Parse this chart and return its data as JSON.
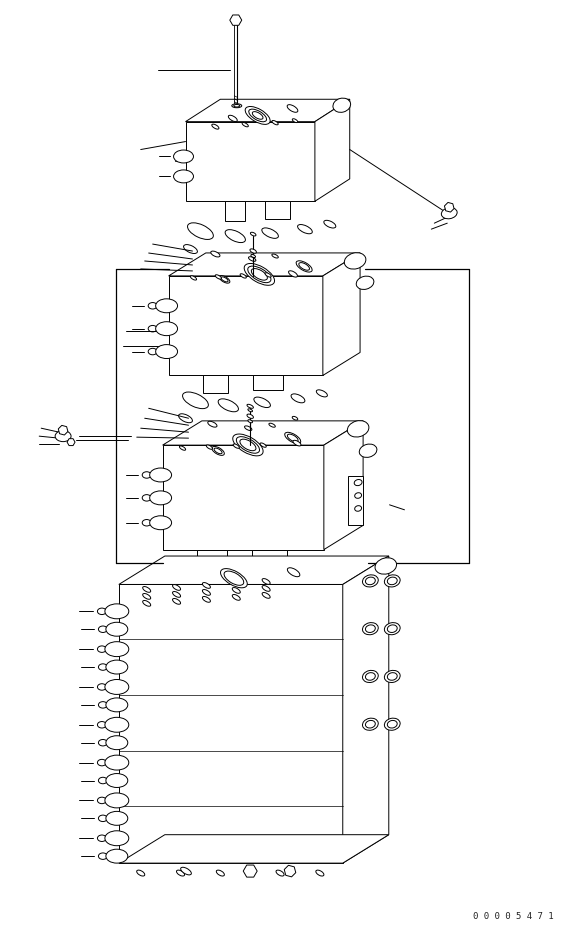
{
  "bg_color": "#ffffff",
  "line_color": "#000000",
  "lw": 0.7,
  "fig_width": 5.85,
  "fig_height": 9.38,
  "watermark": "0 0 0 0 5 4 7 1",
  "wm_fontsize": 6.5
}
